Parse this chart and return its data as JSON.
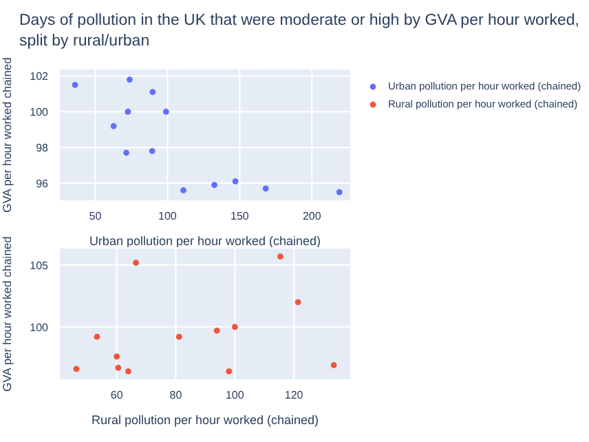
{
  "chart_data": [
    {
      "type": "scatter",
      "title": "Days of pollution in the UK that were moderate or high by GVA per hour worked,\nsplit by rural/urban",
      "xlabel": "Urban pollution per hour worked (chained)",
      "ylabel": "GVA per hour worked chained",
      "xlim": [
        25,
        227
      ],
      "ylim": [
        95,
        102.4
      ],
      "xticks": [
        50,
        100,
        150,
        200
      ],
      "yticks": [
        96,
        98,
        100,
        102
      ],
      "grid": true,
      "legend": "top right",
      "marker": "circle",
      "series": [
        {
          "name": "Urban pollution per hour worked (chained)",
          "color": "#636efa",
          "x": [
            36,
            73.8,
            89.7,
            72.6,
            99,
            62.7,
            71.5,
            89.4,
            111,
            132.5,
            147,
            168,
            219
          ],
          "values": [
            101.5,
            101.8,
            101.1,
            100,
            100,
            99.2,
            97.7,
            97.8,
            95.6,
            95.9,
            96.1,
            95.7,
            95.5
          ]
        }
      ]
    },
    {
      "type": "scatter",
      "xlabel": "Rural pollution per hour worked (chained)",
      "ylabel": "GVA per hour worked chained",
      "xlim": [
        40.5,
        139.3
      ],
      "ylim": [
        95.7,
        106.4
      ],
      "xticks": [
        60,
        80,
        100,
        120
      ],
      "yticks": [
        100,
        105
      ],
      "grid": true,
      "legend": "top right",
      "marker": "circle",
      "series": [
        {
          "name": "Rural pollution per hour worked (chained)",
          "color": "#ef553b",
          "x": [
            46.3,
            53.3,
            60,
            60.5,
            63.9,
            66.5,
            81.1,
            93.9,
            100,
            98,
            115.4,
            121.4,
            133.5
          ],
          "values": [
            96.6,
            99.2,
            97.6,
            96.7,
            96.4,
            105.2,
            99.2,
            99.7,
            100,
            96.4,
            105.7,
            102,
            96.9
          ]
        }
      ]
    }
  ]
}
